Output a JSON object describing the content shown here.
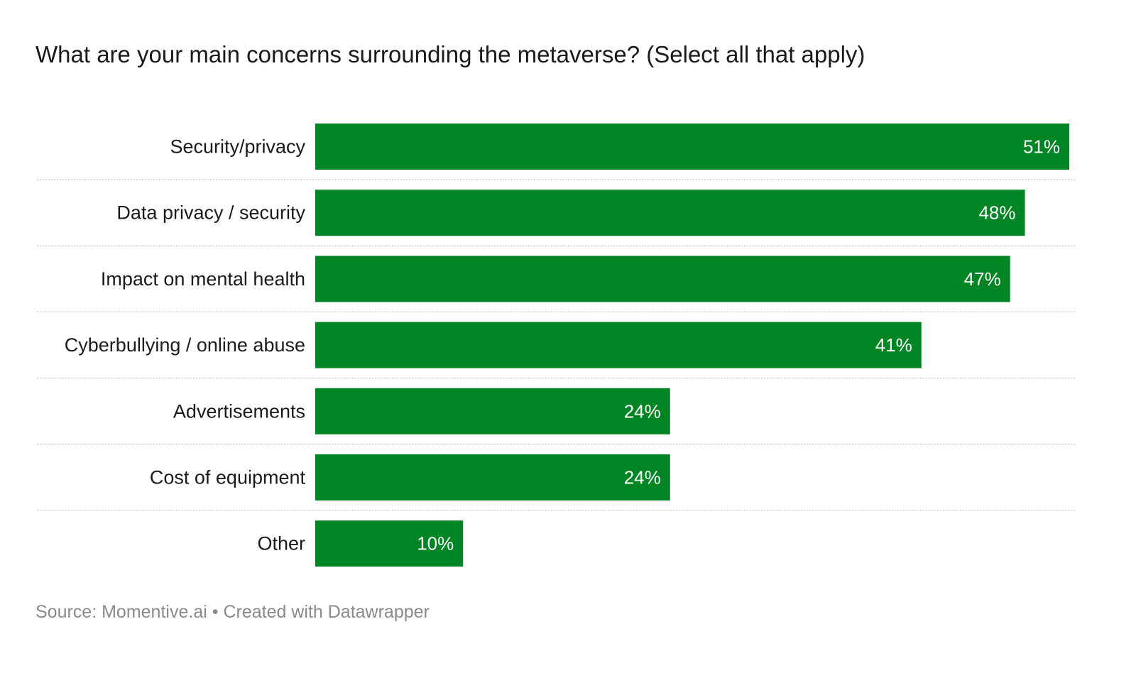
{
  "title": "What are your main concerns surrounding the metaverse? (Select all that apply)",
  "footer": {
    "source": "Source: Momentive.ai",
    "separator": "•",
    "credit": "Created with Datawrapper"
  },
  "colors": {
    "bar": "#008524",
    "separator": "#cfcfcf",
    "value_text": "#ffffff",
    "footer_text": "#8a8a8a"
  },
  "chart_data": {
    "type": "bar",
    "orientation": "horizontal",
    "title": "What are your main concerns surrounding the metaverse? (Select all that apply)",
    "categories": [
      "Security/privacy",
      "Data privacy / security",
      "Impact on mental health",
      "Cyberbullying / online abuse",
      "Advertisements",
      "Cost of equipment",
      "Other"
    ],
    "values": [
      51,
      48,
      47,
      41,
      24,
      24,
      10
    ],
    "value_labels": [
      "51%",
      "48%",
      "47%",
      "41%",
      "24%",
      "24%",
      "10%"
    ],
    "unit": "%",
    "xlim": [
      0,
      51
    ],
    "grid": false,
    "legend": "none"
  }
}
